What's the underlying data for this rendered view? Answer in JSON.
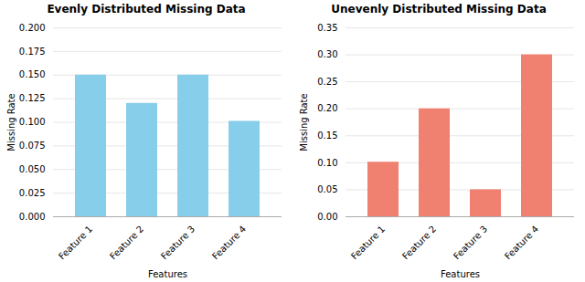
{
  "chart_data": [
    {
      "type": "bar",
      "title": "Evenly Distributed Missing Data",
      "x_label": "Features",
      "y_label": "Missing Rate",
      "categories": [
        "Feature 1",
        "Feature 2",
        "Feature 3",
        "Feature 4"
      ],
      "values": [
        0.15,
        0.12,
        0.15,
        0.101
      ],
      "color": "#87CEEB",
      "ylim": [
        0.0,
        0.2
      ],
      "yticks": [
        {
          "value": 0.0,
          "label": "0.000"
        },
        0.025,
        {
          "value": 0.05,
          "label": "0.050"
        },
        0.075,
        {
          "value": 0.1,
          "label": "0.100"
        },
        0.125,
        {
          "value": 0.15,
          "label": "0.150"
        },
        0.175,
        {
          "value": 0.2,
          "label": "0.200"
        }
      ],
      "grid": true
    },
    {
      "type": "bar",
      "title": "Unevenly Distributed Missing Data",
      "x_label": "Features",
      "y_label": "Missing Rate",
      "categories": [
        "Feature 1",
        "Feature 2",
        "Feature 3",
        "Feature 4"
      ],
      "values": [
        0.101,
        0.2,
        0.05,
        0.3
      ],
      "color": "#F08070",
      "ylim": [
        0.0,
        0.35
      ],
      "yticks": [
        {
          "value": 0.0,
          "label": "0.00"
        },
        0.05,
        {
          "value": 0.1,
          "label": "0.10"
        },
        0.15,
        {
          "value": 0.2,
          "label": "0.20"
        },
        0.25,
        {
          "value": 0.3,
          "label": "0.30"
        },
        0.35
      ],
      "grid": true
    }
  ]
}
